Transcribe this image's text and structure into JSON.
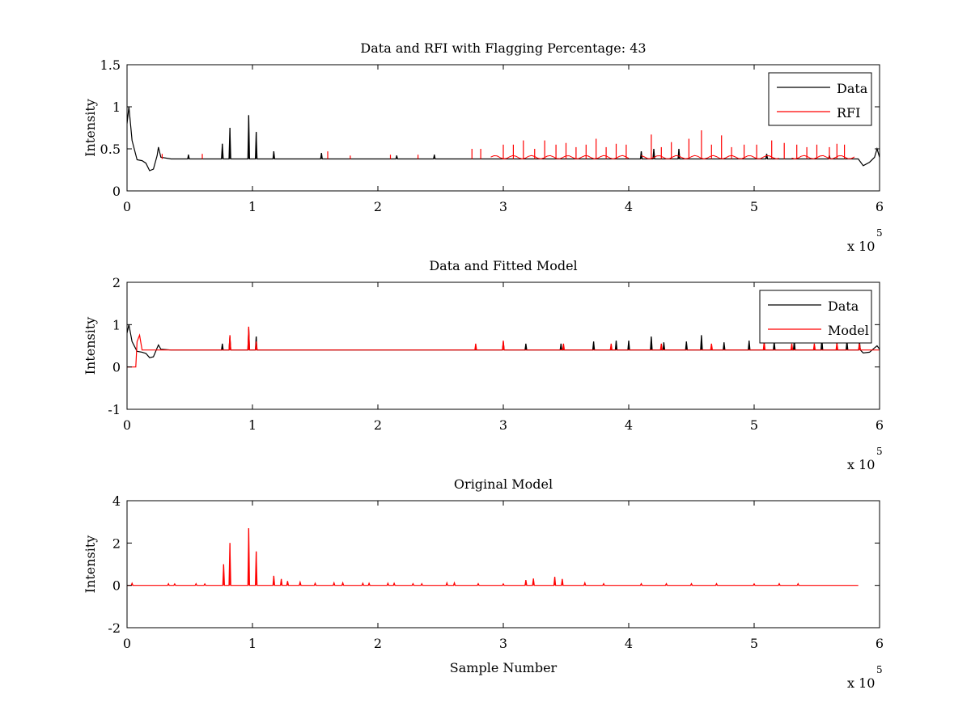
{
  "chart_data": [
    {
      "type": "line",
      "title": "Data and RFI with Flagging Percentage: 43",
      "xlabel": "",
      "ylabel": "Intensity",
      "xlim": [
        0,
        600000
      ],
      "ylim": [
        0,
        1.5
      ],
      "xticks": [
        "0",
        "1",
        "2",
        "3",
        "4",
        "5",
        "6"
      ],
      "yticks": [
        "0",
        "0.5",
        "1",
        "1.5"
      ],
      "x_exponent": {
        "base": "x 10",
        "power": "5"
      },
      "legend": "top-right",
      "grid": false,
      "series": [
        {
          "name": "Data",
          "color": "#000000",
          "baseline": 0.38,
          "points": [
            [
              0,
              0.8
            ],
            [
              1500,
              1.0
            ],
            [
              4000,
              0.6
            ],
            [
              8000,
              0.37
            ],
            [
              12000,
              0.36
            ],
            [
              15000,
              0.33
            ],
            [
              18000,
              0.24
            ],
            [
              21000,
              0.26
            ],
            [
              24000,
              0.42
            ],
            [
              25000,
              0.52
            ],
            [
              27000,
              0.4
            ],
            [
              35000,
              0.38
            ],
            [
              583000,
              0.38
            ],
            [
              587000,
              0.3
            ],
            [
              592000,
              0.34
            ],
            [
              596000,
              0.4
            ],
            [
              598000,
              0.5
            ],
            [
              600000,
              0.4
            ]
          ],
          "spikes": [
            [
              49000,
              0.43
            ],
            [
              76000,
              0.56
            ],
            [
              82000,
              0.75
            ],
            [
              97000,
              0.9
            ],
            [
              103000,
              0.7
            ],
            [
              117000,
              0.47
            ],
            [
              155000,
              0.45
            ],
            [
              215000,
              0.42
            ],
            [
              245000,
              0.43
            ],
            [
              410000,
              0.47
            ],
            [
              420000,
              0.5
            ],
            [
              440000,
              0.5
            ],
            [
              510000,
              0.44
            ],
            [
              560000,
              0.42
            ]
          ]
        },
        {
          "name": "RFI",
          "color": "#ff0000",
          "spikes": [
            [
              28000,
              0.44
            ],
            [
              60000,
              0.44
            ],
            [
              160000,
              0.47
            ],
            [
              178000,
              0.42
            ],
            [
              210000,
              0.43
            ],
            [
              232000,
              0.43
            ],
            [
              275000,
              0.5
            ],
            [
              282000,
              0.5
            ],
            [
              300000,
              0.55
            ],
            [
              308000,
              0.55
            ],
            [
              316000,
              0.6
            ],
            [
              325000,
              0.5
            ],
            [
              333000,
              0.6
            ],
            [
              342000,
              0.55
            ],
            [
              350000,
              0.57
            ],
            [
              358000,
              0.52
            ],
            [
              366000,
              0.55
            ],
            [
              374000,
              0.62
            ],
            [
              382000,
              0.52
            ],
            [
              390000,
              0.56
            ],
            [
              398000,
              0.55
            ],
            [
              418000,
              0.67
            ],
            [
              426000,
              0.52
            ],
            [
              434000,
              0.58
            ],
            [
              448000,
              0.62
            ],
            [
              458000,
              0.72
            ],
            [
              466000,
              0.55
            ],
            [
              474000,
              0.66
            ],
            [
              482000,
              0.52
            ],
            [
              492000,
              0.55
            ],
            [
              502000,
              0.55
            ],
            [
              514000,
              0.6
            ],
            [
              524000,
              0.57
            ],
            [
              534000,
              0.55
            ],
            [
              542000,
              0.52
            ],
            [
              550000,
              0.55
            ],
            [
              560000,
              0.52
            ],
            [
              566000,
              0.56
            ],
            [
              572000,
              0.55
            ]
          ],
          "segments": [
            [
              290000,
              400000
            ],
            [
              410000,
              520000
            ],
            [
              530000,
              580000
            ]
          ]
        }
      ]
    },
    {
      "type": "line",
      "title": "Data and Fitted Model",
      "xlabel": "",
      "ylabel": "Intensity",
      "xlim": [
        0,
        600000
      ],
      "ylim": [
        -1,
        2
      ],
      "xticks": [
        "0",
        "1",
        "2",
        "3",
        "4",
        "5",
        "6"
      ],
      "yticks": [
        "-1",
        "0",
        "1",
        "2"
      ],
      "x_exponent": {
        "base": "x 10",
        "power": "5"
      },
      "legend": "top-right",
      "grid": false,
      "series": [
        {
          "name": "Data",
          "color": "#000000",
          "baseline": 0.4,
          "points": [
            [
              0,
              0.8
            ],
            [
              1500,
              1.0
            ],
            [
              4000,
              0.6
            ],
            [
              8000,
              0.37
            ],
            [
              12000,
              0.35
            ],
            [
              15000,
              0.32
            ],
            [
              18000,
              0.22
            ],
            [
              21000,
              0.24
            ],
            [
              24000,
              0.45
            ],
            [
              25000,
              0.52
            ],
            [
              27000,
              0.42
            ],
            [
              35000,
              0.4
            ],
            [
              583000,
              0.4
            ],
            [
              587000,
              0.33
            ],
            [
              592000,
              0.35
            ],
            [
              596000,
              0.45
            ],
            [
              598000,
              0.5
            ],
            [
              600000,
              0.42
            ]
          ],
          "spikes": [
            [
              76000,
              0.55
            ],
            [
              82000,
              0.72
            ],
            [
              97000,
              0.9
            ],
            [
              103000,
              0.72
            ],
            [
              300000,
              0.58
            ],
            [
              318000,
              0.55
            ],
            [
              346000,
              0.55
            ],
            [
              372000,
              0.6
            ],
            [
              390000,
              0.62
            ],
            [
              400000,
              0.62
            ],
            [
              418000,
              0.72
            ],
            [
              428000,
              0.58
            ],
            [
              446000,
              0.6
            ],
            [
              458000,
              0.75
            ],
            [
              476000,
              0.58
            ],
            [
              496000,
              0.62
            ],
            [
              516000,
              0.6
            ],
            [
              532000,
              0.62
            ],
            [
              554000,
              0.66
            ],
            [
              574000,
              0.62
            ],
            [
              584000,
              0.6
            ]
          ]
        },
        {
          "name": "Model",
          "color": "#ff0000",
          "baseline": 0.4,
          "points": [
            [
              0,
              0.0
            ],
            [
              7000,
              0.0
            ],
            [
              8000,
              0.6
            ],
            [
              10000,
              0.75
            ],
            [
              12000,
              0.4
            ],
            [
              600000,
              0.4
            ]
          ],
          "spikes": [
            [
              82000,
              0.75
            ],
            [
              97000,
              0.95
            ],
            [
              103000,
              0.6
            ],
            [
              278000,
              0.55
            ],
            [
              300000,
              0.62
            ],
            [
              348000,
              0.55
            ],
            [
              386000,
              0.55
            ],
            [
              426000,
              0.55
            ],
            [
              466000,
              0.55
            ],
            [
              508000,
              0.6
            ],
            [
              530000,
              0.55
            ],
            [
              548000,
              0.55
            ],
            [
              566000,
              0.58
            ],
            [
              584000,
              0.55
            ]
          ]
        }
      ]
    },
    {
      "type": "line",
      "title": "Original Model",
      "xlabel": "Sample Number",
      "ylabel": "Intensity",
      "xlim": [
        0,
        600000
      ],
      "ylim": [
        -2,
        4
      ],
      "xticks": [
        "0",
        "1",
        "2",
        "3",
        "4",
        "5",
        "6"
      ],
      "yticks": [
        "-2",
        "0",
        "2",
        "4"
      ],
      "x_exponent": {
        "base": "x 10",
        "power": "5"
      },
      "legend": "none",
      "grid": false,
      "series": [
        {
          "color": "#ff0000",
          "baseline": 0.0,
          "points": [
            [
              0,
              0.0
            ],
            [
              583000,
              0.0
            ]
          ],
          "spikes": [
            [
              4000,
              0.1
            ],
            [
              33000,
              0.08
            ],
            [
              38000,
              0.07
            ],
            [
              55000,
              0.08
            ],
            [
              62000,
              0.07
            ],
            [
              77000,
              1.0
            ],
            [
              82000,
              2.0
            ],
            [
              97000,
              2.7
            ],
            [
              103000,
              1.6
            ],
            [
              117000,
              0.45
            ],
            [
              123000,
              0.3
            ],
            [
              128000,
              0.2
            ],
            [
              138000,
              0.15
            ],
            [
              150000,
              0.1
            ],
            [
              165000,
              0.12
            ],
            [
              172000,
              0.12
            ],
            [
              188000,
              0.1
            ],
            [
              193000,
              0.1
            ],
            [
              208000,
              0.1
            ],
            [
              213000,
              0.1
            ],
            [
              228000,
              0.08
            ],
            [
              235000,
              0.08
            ],
            [
              255000,
              0.12
            ],
            [
              261000,
              0.12
            ],
            [
              280000,
              0.08
            ],
            [
              300000,
              0.07
            ],
            [
              318000,
              0.25
            ],
            [
              324000,
              0.32
            ],
            [
              341000,
              0.4
            ],
            [
              347000,
              0.3
            ],
            [
              365000,
              0.12
            ],
            [
              380000,
              0.08
            ],
            [
              410000,
              0.08
            ],
            [
              430000,
              0.08
            ],
            [
              450000,
              0.08
            ],
            [
              470000,
              0.08
            ],
            [
              500000,
              0.07
            ],
            [
              520000,
              0.08
            ],
            [
              535000,
              0.08
            ]
          ]
        }
      ]
    }
  ]
}
